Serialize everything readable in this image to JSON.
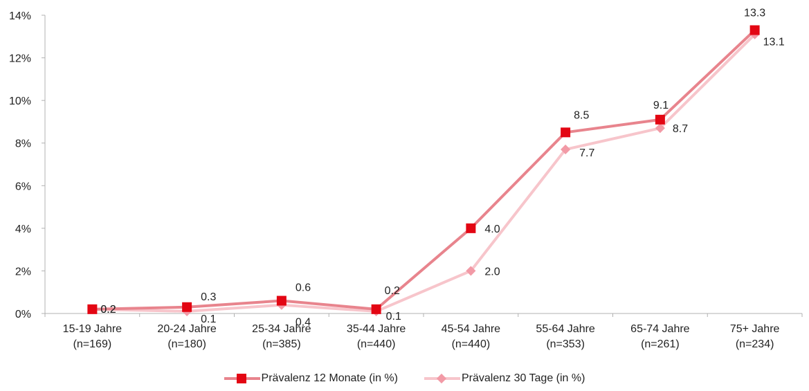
{
  "chart_data": {
    "type": "line",
    "title": "",
    "xlabel": "",
    "ylabel": "",
    "categories": [
      [
        "15-19 Jahre",
        "(n=169)"
      ],
      [
        "20-24 Jahre",
        "(n=180)"
      ],
      [
        "25-34 Jahre",
        "(n=385)"
      ],
      [
        "35-44 Jahre",
        "(n=440)"
      ],
      [
        "45-54 Jahre",
        "(n=440)"
      ],
      [
        "55-64 Jahre",
        "(n=353)"
      ],
      [
        "65-74 Jahre",
        "(n=261)"
      ],
      [
        "75+ Jahre",
        "(n=234)"
      ]
    ],
    "ylim": [
      0,
      14
    ],
    "yticks": [
      0,
      2,
      4,
      6,
      8,
      10,
      12,
      14
    ],
    "ytick_labels": [
      "0%",
      "2%",
      "4%",
      "6%",
      "8%",
      "10%",
      "12%",
      "14%"
    ],
    "grid": false,
    "legend_position": "bottom",
    "series": [
      {
        "name": "Prävalenz 12 Monate (in %)",
        "values": [
          0.2,
          0.3,
          0.6,
          0.2,
          4.0,
          8.5,
          9.1,
          13.3
        ],
        "labels": [
          "0.2",
          "0.3",
          "0.6",
          "0.2",
          "4.0",
          "8.5",
          "9.1",
          "13.3"
        ],
        "line_color": "#e8848d",
        "marker_color": "#e30613",
        "marker": "square"
      },
      {
        "name": "Prävalenz 30 Tage (in %)",
        "values": [
          0.2,
          0.1,
          0.4,
          0.1,
          2.0,
          7.7,
          8.7,
          13.1
        ],
        "labels": [
          "0.2",
          "0.1",
          "0.4",
          "0.1",
          "2.0",
          "7.7",
          "8.7",
          "13.1"
        ],
        "line_color": "#f7c5cb",
        "marker_color": "#f29aa6",
        "marker": "diamond"
      }
    ]
  }
}
